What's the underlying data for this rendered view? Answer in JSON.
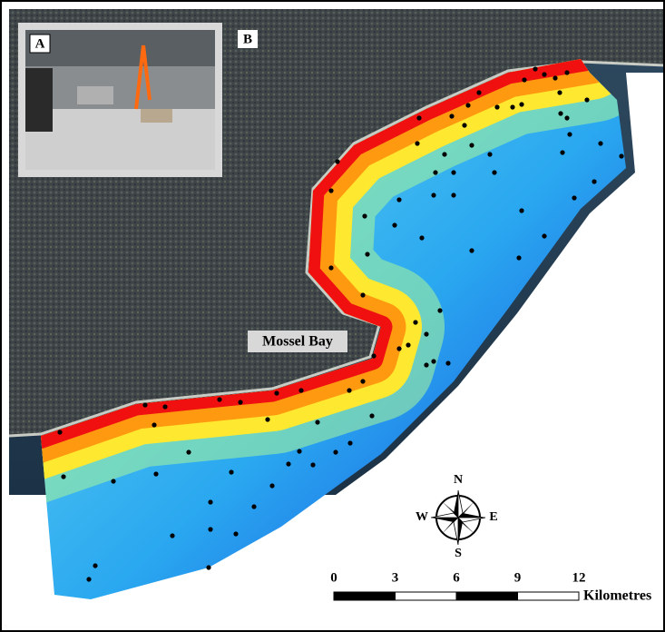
{
  "inset_label": "A",
  "map_label": "B",
  "place_label": "Mossel Bay",
  "compass": {
    "north": "N",
    "east": "E",
    "south": "S",
    "west": "W"
  },
  "scale_bar": {
    "ticks": [
      0,
      3,
      6,
      9,
      12
    ],
    "unit": "Kilometres"
  }
}
